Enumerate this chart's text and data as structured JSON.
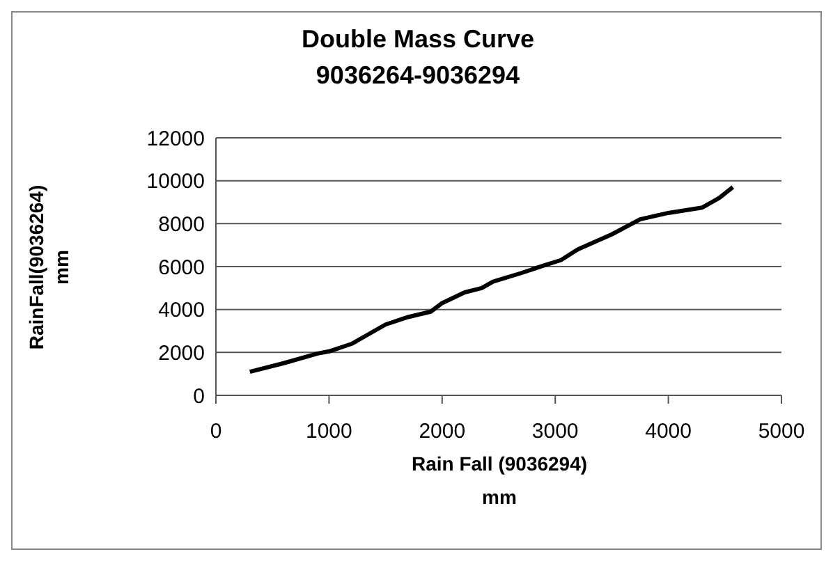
{
  "chart_data": {
    "type": "line",
    "title": "Double Mass Curve\n9036264-9036294",
    "xlabel": "Rain Fall (9036294)\nmm",
    "ylabel": "RainFall(9036264)\nmm",
    "x": [
      300,
      600,
      900,
      1000,
      1200,
      1300,
      1500,
      1700,
      1900,
      2000,
      2200,
      2350,
      2450,
      2700,
      2900,
      3050,
      3200,
      3500,
      3750,
      4000,
      4300,
      4450,
      4570
    ],
    "series": [
      {
        "color": "#000000",
        "values": [
          1100,
          1500,
          1950,
          2050,
          2400,
          2700,
          3300,
          3650,
          3900,
          4300,
          4800,
          5000,
          5300,
          5700,
          6050,
          6300,
          6800,
          7500,
          8200,
          8500,
          8750,
          9200,
          9700
        ]
      }
    ],
    "xlim": [
      0,
      5000
    ],
    "xticks": [
      0,
      1000,
      2000,
      3000,
      4000,
      5000
    ],
    "ylim": [
      0,
      12000
    ],
    "yticks": [
      0,
      2000,
      4000,
      6000,
      8000,
      10000,
      12000
    ],
    "grid": "y",
    "legend": false,
    "marker": "none",
    "line_style": "solid"
  }
}
